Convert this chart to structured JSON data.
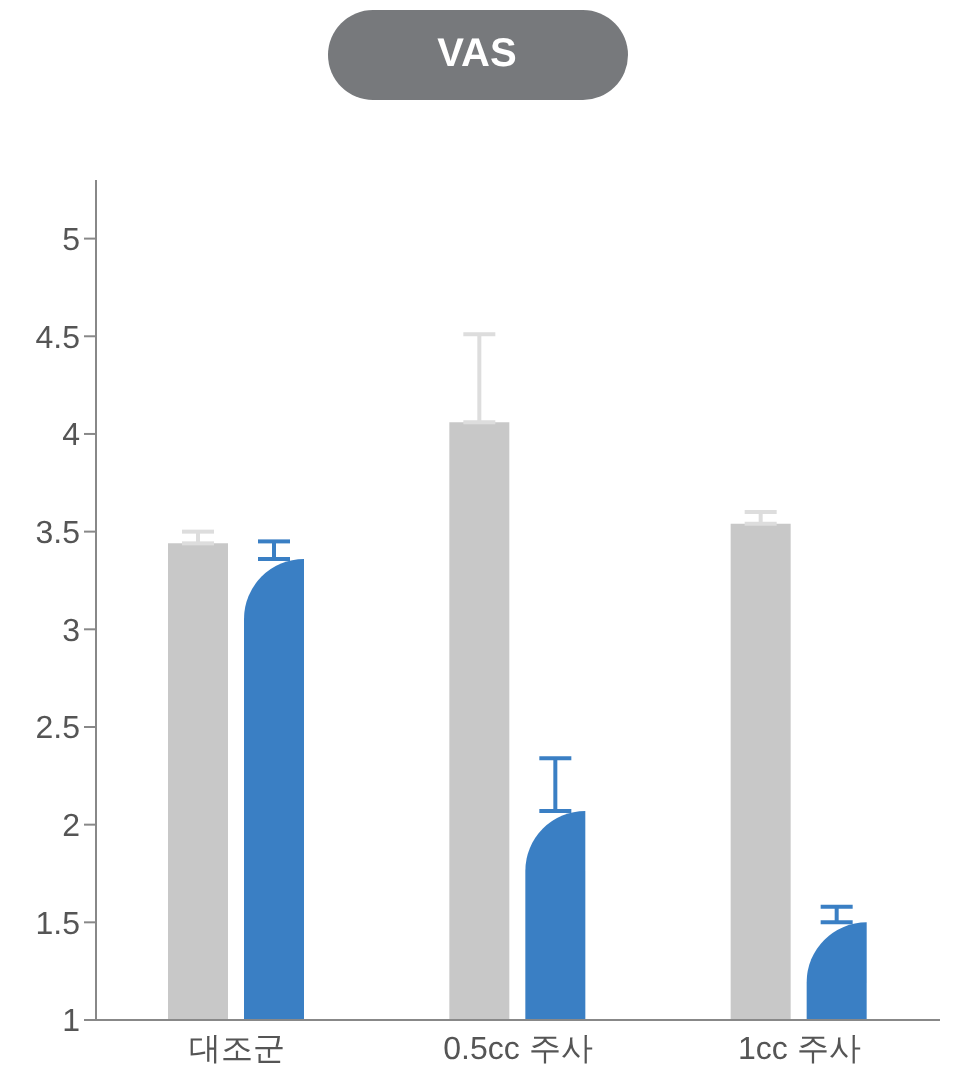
{
  "chart_data": {
    "type": "bar",
    "title": "VAS",
    "categories": [
      "대조군",
      "0.5cc 주사",
      "1cc 주사"
    ],
    "series": [
      {
        "color": "#c8c8c8",
        "values": [
          3.44,
          4.06,
          3.54
        ],
        "errors": [
          [
            3.44,
            3.5
          ],
          [
            4.06,
            4.51
          ],
          [
            3.54,
            3.6
          ]
        ]
      },
      {
        "color": "#3a7fc4",
        "values": [
          3.36,
          2.07,
          1.5
        ],
        "errors": [
          [
            3.36,
            3.45
          ],
          [
            2.07,
            2.34
          ],
          [
            1.5,
            1.58
          ]
        ]
      }
    ],
    "ylim": [
      1,
      5.3
    ],
    "yticks": [
      1,
      1.5,
      2,
      2.5,
      3,
      3.5,
      4,
      4.5,
      5
    ],
    "grid": false,
    "legend": false
  }
}
